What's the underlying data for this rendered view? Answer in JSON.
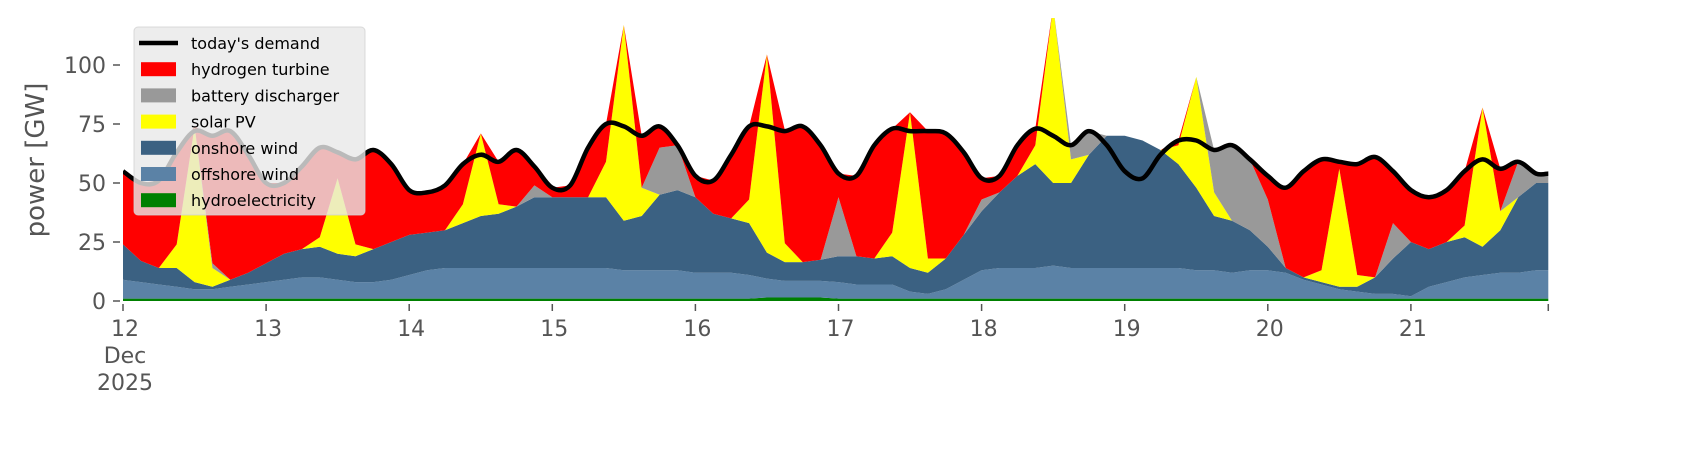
{
  "chart_data": {
    "type": "area",
    "title": "",
    "xlabel": "",
    "ylabel": "power [GW]",
    "ylim": [
      0,
      120
    ],
    "x_start_day": 12,
    "x_step_days": 0.125,
    "x_end_day": 21.96,
    "grid": false,
    "legend_placement": "top-left",
    "yticks": [
      {
        "value": 0,
        "label": "0"
      },
      {
        "value": 25,
        "label": "25"
      },
      {
        "value": 50,
        "label": "50"
      },
      {
        "value": 75,
        "label": "75"
      },
      {
        "value": 100,
        "label": "100"
      }
    ],
    "xticks": [
      {
        "day": 12,
        "lines": [
          "12",
          "Dec",
          "2025"
        ]
      },
      {
        "day": 13,
        "lines": [
          "13"
        ]
      },
      {
        "day": 14,
        "lines": [
          "14"
        ]
      },
      {
        "day": 15,
        "lines": [
          "15"
        ]
      },
      {
        "day": 16,
        "lines": [
          "16"
        ]
      },
      {
        "day": 17,
        "lines": [
          "17"
        ]
      },
      {
        "day": 18,
        "lines": [
          "18"
        ]
      },
      {
        "day": 19,
        "lines": [
          "19"
        ]
      },
      {
        "day": 20,
        "lines": [
          "20"
        ]
      },
      {
        "day": 21,
        "lines": [
          "21"
        ]
      },
      {
        "day": 21.96,
        "lines": [
          ""
        ]
      }
    ],
    "demand": {
      "name": "today's demand",
      "color": "#000000",
      "values": [
        55,
        50,
        51,
        63,
        72,
        70,
        72,
        62,
        50,
        50,
        57,
        65,
        63,
        60,
        64,
        58,
        47,
        46,
        49,
        58,
        62,
        59,
        64,
        57,
        48,
        49,
        65,
        75,
        74,
        70,
        74,
        66,
        53,
        51,
        62,
        74,
        74,
        72,
        74,
        66,
        54,
        53,
        66,
        73,
        72,
        72,
        71,
        63,
        52,
        53,
        66,
        73,
        70,
        66,
        72,
        66,
        55,
        52,
        62,
        68,
        68,
        64,
        66,
        60,
        53,
        48,
        55,
        60,
        59,
        58,
        61,
        55,
        47,
        44,
        47,
        55,
        60,
        56,
        59,
        54
      ]
    },
    "series": [
      {
        "name": "hydroelectricity",
        "color": "#008000",
        "values": [
          1,
          1,
          1,
          1,
          1,
          1,
          1,
          1,
          1,
          1,
          1,
          1,
          1,
          1,
          1,
          1,
          1,
          1,
          1,
          1,
          1,
          1,
          1,
          1,
          1,
          1,
          1,
          1,
          1,
          1,
          1,
          1,
          1,
          1,
          1,
          1,
          1.5,
          1.5,
          1.5,
          1.5,
          1,
          1,
          1,
          1,
          1,
          1,
          1,
          1,
          1,
          1,
          1,
          1,
          1,
          1,
          1,
          1,
          1,
          1,
          1,
          1,
          1,
          1,
          1,
          1,
          1,
          1,
          1,
          1,
          1,
          1,
          1,
          1,
          1,
          1,
          1,
          1,
          1,
          1,
          1,
          1
        ]
      },
      {
        "name": "offshore wind",
        "color": "#5b82a6",
        "values": [
          8,
          7,
          6,
          5,
          4,
          4,
          5,
          6,
          7,
          8,
          9,
          9,
          8,
          7,
          7,
          8,
          10,
          12,
          13,
          13,
          13,
          13,
          13,
          13,
          13,
          13,
          13,
          13,
          12,
          12,
          12,
          12,
          11,
          11,
          11,
          10,
          8,
          7,
          7,
          7,
          7,
          6,
          6,
          6,
          3,
          2,
          4,
          8,
          12,
          13,
          13,
          13,
          14,
          13,
          13,
          13,
          13,
          13,
          13,
          13,
          12,
          12,
          11,
          12,
          12,
          11,
          8,
          6,
          4,
          3,
          2,
          2,
          1,
          5,
          7,
          9,
          10,
          11,
          11,
          12
        ]
      },
      {
        "name": "onshore wind",
        "color": "#3b6182",
        "values": [
          15,
          9,
          7,
          8,
          3,
          1,
          3,
          5,
          8,
          11,
          12,
          13,
          11,
          11,
          14,
          16,
          17,
          16,
          16,
          19,
          22,
          23,
          26,
          30,
          30,
          30,
          30,
          30,
          21,
          23,
          32,
          34,
          32,
          25,
          23,
          22,
          11,
          8,
          8,
          9,
          11,
          12,
          11,
          12,
          10,
          9,
          13,
          19,
          25,
          32,
          39,
          44,
          35,
          36,
          48,
          56,
          56,
          54,
          50,
          44,
          35,
          23,
          22,
          17,
          10,
          2,
          1,
          1,
          1,
          2,
          7,
          15,
          23,
          16,
          17,
          17,
          12,
          18,
          32,
          37
        ]
      },
      {
        "name": "solar PV",
        "color": "#ffff00",
        "values": [
          0,
          0,
          0,
          10,
          66,
          8,
          0,
          0,
          0,
          0,
          0,
          4,
          32,
          5,
          0,
          0,
          0,
          0,
          0,
          8,
          35,
          4,
          0,
          0,
          0,
          0,
          0,
          15,
          83,
          12,
          0,
          0,
          0,
          0,
          0,
          10,
          84,
          8,
          0,
          0,
          0,
          0,
          0,
          10,
          66,
          6,
          0,
          0,
          0,
          0,
          0,
          8,
          75,
          10,
          0,
          0,
          0,
          0,
          0,
          8,
          47,
          10,
          0,
          0,
          0,
          0,
          0,
          5,
          50,
          5,
          0,
          0,
          0,
          0,
          0,
          5,
          59,
          8,
          0,
          0
        ]
      },
      {
        "name": "battery discharger",
        "color": "#999999",
        "values": [
          0,
          0,
          0,
          0,
          0,
          2,
          0,
          0,
          0,
          0,
          0,
          0,
          0,
          0,
          0,
          0,
          0,
          0,
          0,
          0,
          0,
          0,
          0,
          5,
          0,
          0,
          0,
          0,
          0,
          0,
          20,
          19,
          0,
          0,
          0,
          0,
          0,
          0,
          0,
          0,
          25,
          0,
          0,
          0,
          0,
          0,
          0,
          0,
          5,
          0,
          0,
          0,
          0,
          6,
          10,
          0,
          0,
          0,
          0,
          0,
          0,
          18,
          32,
          30,
          20,
          0,
          0,
          0,
          0,
          0,
          0,
          15,
          0,
          0,
          0,
          0,
          0,
          0,
          15,
          4
        ]
      },
      {
        "name": "hydrogen turbine",
        "color": "#ff0000",
        "values": [
          31,
          33,
          37,
          39,
          0,
          54,
          63,
          50,
          34,
          30,
          35,
          38,
          11,
          36,
          42,
          33,
          19,
          17,
          19,
          17,
          0,
          18,
          24,
          8,
          4,
          5,
          21,
          16,
          0,
          22,
          9,
          0,
          9,
          14,
          27,
          31,
          0,
          48,
          58,
          49,
          10,
          34,
          48,
          44,
          0,
          54,
          53,
          35,
          9,
          7,
          13,
          7,
          0,
          0,
          0,
          0,
          0,
          0,
          0,
          2,
          0,
          0,
          0,
          0,
          10,
          34,
          45,
          47,
          3,
          47,
          51,
          22,
          22,
          22,
          22,
          23,
          0,
          18,
          0,
          0
        ]
      }
    ],
    "legend": [
      {
        "label": "today's demand",
        "color": "#000000",
        "kind": "line"
      },
      {
        "label": "hydrogen turbine",
        "color": "#ff0000",
        "kind": "patch"
      },
      {
        "label": "battery discharger",
        "color": "#999999",
        "kind": "patch"
      },
      {
        "label": "solar PV",
        "color": "#ffff00",
        "kind": "patch"
      },
      {
        "label": "onshore wind",
        "color": "#3b6182",
        "kind": "patch"
      },
      {
        "label": "offshore wind",
        "color": "#5b82a6",
        "kind": "patch"
      },
      {
        "label": "hydroelectricity",
        "color": "#008000",
        "kind": "patch"
      }
    ]
  }
}
